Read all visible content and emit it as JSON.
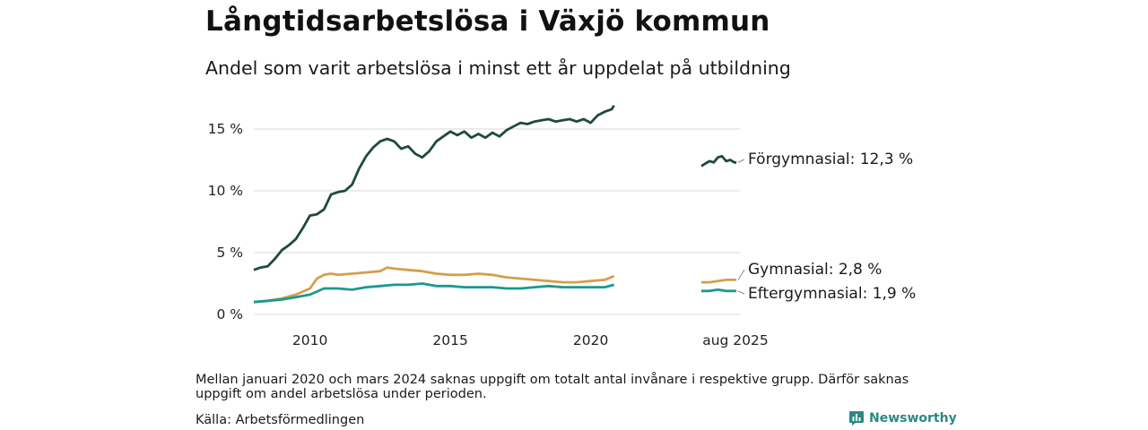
{
  "header": {
    "title": "Långtidsarbetslösa i Växjö kommun",
    "subtitle": "Andel som varit arbetslösa i minst ett år uppdelat på utbildning"
  },
  "footer": {
    "note": "Mellan januari 2020 och mars 2024 saknas uppgift om totalt antal invånare i respektive grupp. Därför saknas uppgift om andel arbetslösa under perioden.",
    "source": "Källa: Arbetsförmedlingen",
    "brand": "Newsworthy",
    "brand_color": "#2a8a83"
  },
  "chart_data": {
    "type": "line",
    "title": "Långtidsarbetslösa i Växjö kommun",
    "subtitle": "Andel som varit arbetslösa i minst ett år uppdelat på utbildning",
    "y_ticks": [
      "0 %",
      "5 %",
      "10 %",
      "15 %"
    ],
    "y_tick_values": [
      0,
      5,
      10,
      15
    ],
    "x_ticks": [
      "2010",
      "2015",
      "2020",
      "aug 2025"
    ],
    "x_tick_years": [
      2010,
      2015,
      2020
    ],
    "ylim": [
      0,
      17
    ],
    "grid": true,
    "legend": "inline labels at right end of lines",
    "series": [
      {
        "name": "Förgymnasial",
        "label": "Förgymnasial: 12,3 %",
        "color": "#1e4a40",
        "segment1": {
          "x": [
            2008.0,
            2008.25,
            2008.5,
            2008.75,
            2009.0,
            2009.25,
            2009.5,
            2009.75,
            2010.0,
            2010.25,
            2010.5,
            2010.75,
            2011.0,
            2011.25,
            2011.5,
            2011.75,
            2012.0,
            2012.25,
            2012.5,
            2012.75,
            2013.0,
            2013.25,
            2013.5,
            2013.75,
            2014.0,
            2014.25,
            2014.5,
            2014.75,
            2015.0,
            2015.25,
            2015.5,
            2015.75,
            2016.0,
            2016.25,
            2016.5,
            2016.75,
            2017.0,
            2017.25,
            2017.5,
            2017.75,
            2018.0,
            2018.25,
            2018.5,
            2018.75,
            2019.0,
            2019.25,
            2019.5,
            2019.75,
            2020.0,
            2020.25,
            2020.5,
            2020.75,
            2020.83
          ],
          "y": [
            3.6,
            3.8,
            3.9,
            4.5,
            5.2,
            5.6,
            6.1,
            7.0,
            8.0,
            8.1,
            8.5,
            9.7,
            9.9,
            10.0,
            10.5,
            11.8,
            12.8,
            13.5,
            14.0,
            14.2,
            14.0,
            13.4,
            13.6,
            13.0,
            12.7,
            13.2,
            14.0,
            14.4,
            14.8,
            14.5,
            14.8,
            14.3,
            14.6,
            14.3,
            14.7,
            14.4,
            14.9,
            15.2,
            15.5,
            15.4,
            15.6,
            15.7,
            15.8,
            15.6,
            15.7,
            15.8,
            15.6,
            15.8,
            15.5,
            16.1,
            16.4,
            16.6,
            16.9
          ]
        },
        "segment2": {
          "x": [
            2024.17,
            2024.33,
            2024.5,
            2024.67,
            2024.83,
            2025.0,
            2025.17,
            2025.33,
            2025.5,
            2025.58
          ],
          "y": [
            12.0,
            12.2,
            12.4,
            12.3,
            12.7,
            12.8,
            12.4,
            12.5,
            12.3,
            12.3
          ]
        }
      },
      {
        "name": "Gymnasial",
        "label": "Gymnasial:  2,8 %",
        "color": "#d4a04c",
        "segment1": {
          "x": [
            2008.0,
            2008.5,
            2009.0,
            2009.5,
            2010.0,
            2010.25,
            2010.5,
            2010.75,
            2011.0,
            2011.5,
            2012.0,
            2012.5,
            2012.75,
            2013.0,
            2013.5,
            2014.0,
            2014.5,
            2015.0,
            2015.5,
            2016.0,
            2016.5,
            2017.0,
            2017.5,
            2018.0,
            2018.5,
            2019.0,
            2019.5,
            2020.0,
            2020.5,
            2020.83
          ],
          "y": [
            1.0,
            1.1,
            1.3,
            1.6,
            2.1,
            2.9,
            3.2,
            3.3,
            3.2,
            3.3,
            3.4,
            3.5,
            3.8,
            3.7,
            3.6,
            3.5,
            3.3,
            3.2,
            3.2,
            3.3,
            3.2,
            3.0,
            2.9,
            2.8,
            2.7,
            2.6,
            2.6,
            2.7,
            2.8,
            3.1
          ]
        },
        "segment2": {
          "x": [
            2024.17,
            2024.5,
            2024.83,
            2025.17,
            2025.58
          ],
          "y": [
            2.6,
            2.6,
            2.7,
            2.8,
            2.8
          ]
        }
      },
      {
        "name": "Eftergymnasial",
        "label": "Eftergymnasial:  1,9 %",
        "color": "#1a9a8f",
        "segment1": {
          "x": [
            2008.0,
            2008.5,
            2009.0,
            2009.5,
            2010.0,
            2010.5,
            2011.0,
            2011.5,
            2012.0,
            2012.5,
            2013.0,
            2013.5,
            2014.0,
            2014.5,
            2015.0,
            2015.5,
            2016.0,
            2016.5,
            2017.0,
            2017.5,
            2018.0,
            2018.5,
            2019.0,
            2019.5,
            2020.0,
            2020.5,
            2020.83
          ],
          "y": [
            1.0,
            1.1,
            1.2,
            1.4,
            1.6,
            2.1,
            2.1,
            2.0,
            2.2,
            2.3,
            2.4,
            2.4,
            2.5,
            2.3,
            2.3,
            2.2,
            2.2,
            2.2,
            2.1,
            2.1,
            2.2,
            2.3,
            2.2,
            2.2,
            2.2,
            2.2,
            2.4
          ]
        },
        "segment2": {
          "x": [
            2024.17,
            2024.5,
            2024.83,
            2025.17,
            2025.58
          ],
          "y": [
            1.9,
            1.9,
            2.0,
            1.9,
            1.9
          ]
        }
      }
    ]
  }
}
